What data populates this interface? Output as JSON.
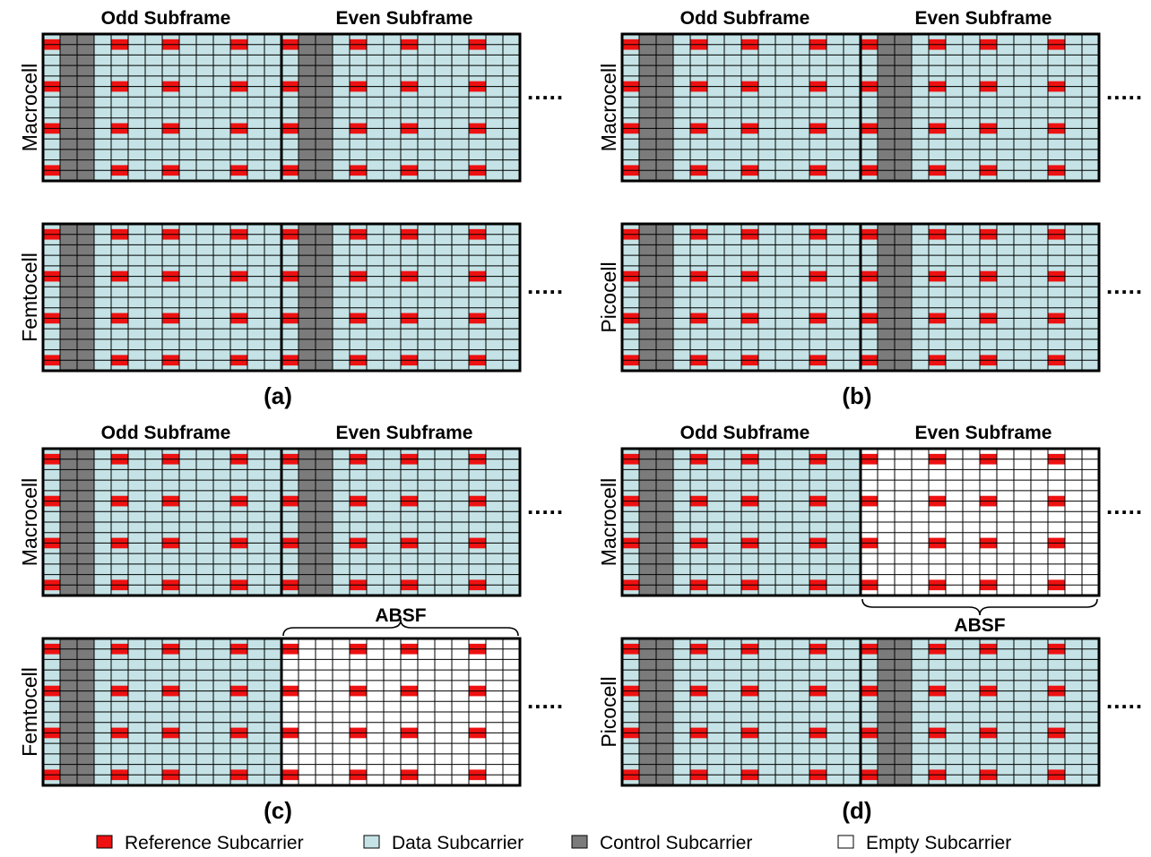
{
  "colors": {
    "reference": "#ee1111",
    "data": "#c5e3e6",
    "control": "#7b7b7b",
    "empty": "#ffffff",
    "gridline": "#000000"
  },
  "panels": [
    {
      "label": "(a)",
      "top_cell": "Macrocell",
      "bottom_cell": "Femtocell",
      "header_left": "Odd Subframe",
      "header_right": "Even Subframe",
      "absf": "none",
      "absf_label": "",
      "ellipsis": "....."
    },
    {
      "label": "(b)",
      "top_cell": "Macrocell",
      "bottom_cell": "Picocell",
      "header_left": "Odd Subframe",
      "header_right": "Even Subframe",
      "absf": "none",
      "absf_label": "",
      "ellipsis": "....."
    },
    {
      "label": "(c)",
      "top_cell": "Macrocell",
      "bottom_cell": "Femtocell",
      "header_left": "Odd Subframe",
      "header_right": "Even Subframe",
      "absf": "bottom",
      "absf_label": "ABSF",
      "ellipsis": "....."
    },
    {
      "label": "(d)",
      "top_cell": "Macrocell",
      "bottom_cell": "Picocell",
      "header_left": "Odd Subframe",
      "header_right": "Even Subframe",
      "absf": "top",
      "absf_label": "ABSF",
      "ellipsis": "....."
    }
  ],
  "legend": [
    {
      "kind": "reference",
      "label": "Reference Subcarrier"
    },
    {
      "kind": "data",
      "label": "Data Subcarrier"
    },
    {
      "kind": "control",
      "label": "Control Subcarrier"
    },
    {
      "kind": "empty",
      "label": "Empty Subcarrier"
    }
  ]
}
